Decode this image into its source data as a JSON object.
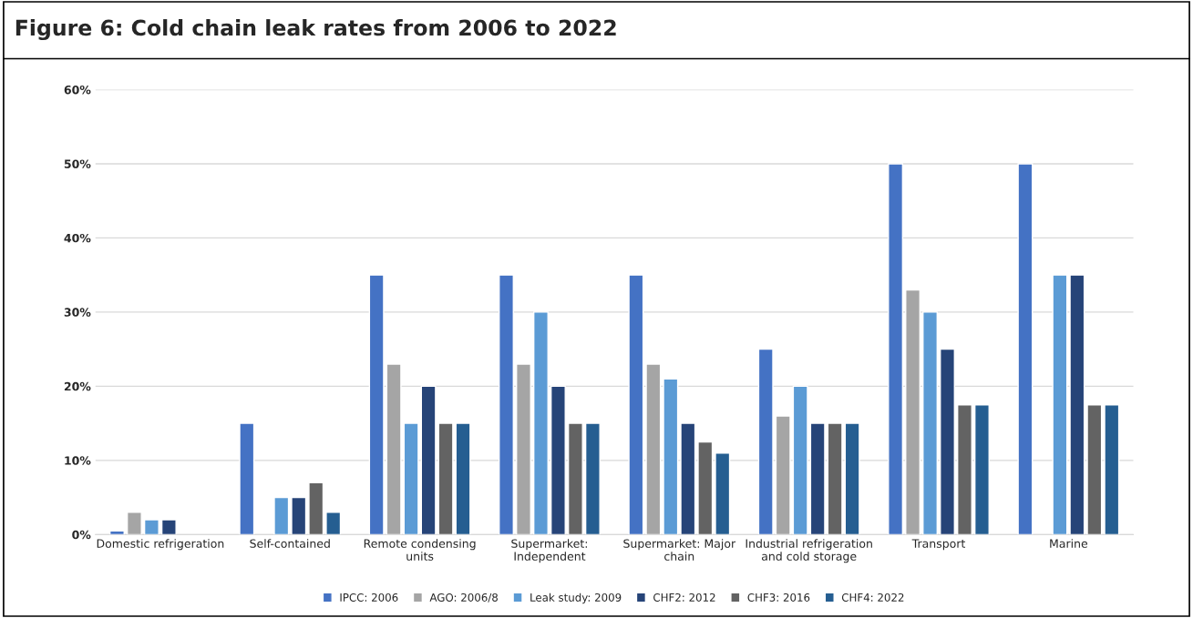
{
  "chart_data": {
    "type": "bar",
    "title": "Figure 6: Cold chain leak rates from 2006 to 2022",
    "categories": [
      "Domestic refrigeration",
      "Self-contained",
      "Remote condensing\nunits",
      "Supermarket:\nIndependent",
      "Supermarket: Major\nchain",
      "Industrial refrigeration\nand cold storage",
      "Transport",
      "Marine"
    ],
    "series": [
      {
        "name": "IPCC: 2006",
        "color": "#4472c4",
        "values": [
          0.5,
          15,
          35,
          35,
          35,
          25,
          50,
          50
        ]
      },
      {
        "name": "AGO: 2006/8",
        "color": "#a5a5a5",
        "values": [
          3,
          null,
          23,
          23,
          23,
          16,
          33,
          null
        ]
      },
      {
        "name": "Leak study: 2009",
        "color": "#5b9bd5",
        "values": [
          2,
          5,
          15,
          30,
          21,
          20,
          30,
          35
        ]
      },
      {
        "name": "CHF2: 2012",
        "color": "#264478",
        "values": [
          2,
          5,
          20,
          20,
          15,
          15,
          25,
          35
        ]
      },
      {
        "name": "CHF3: 2016",
        "color": "#636363",
        "values": [
          null,
          7,
          15,
          15,
          12.5,
          15,
          17.5,
          17.5
        ]
      },
      {
        "name": "CHF4: 2022",
        "color": "#255e91",
        "values": [
          null,
          3,
          15,
          15,
          11,
          15,
          17.5,
          17.5
        ]
      }
    ],
    "ylim": [
      0,
      60
    ],
    "yticks": [
      {
        "value": 0,
        "label": "0%"
      },
      {
        "value": 10,
        "label": "10%"
      },
      {
        "value": 20,
        "label": "20%"
      },
      {
        "value": 30,
        "label": "30%"
      },
      {
        "value": 40,
        "label": "40%"
      },
      {
        "value": 50,
        "label": "50%"
      },
      {
        "value": 60,
        "label": "60%"
      }
    ],
    "grid": "y",
    "legend": "bottom"
  }
}
